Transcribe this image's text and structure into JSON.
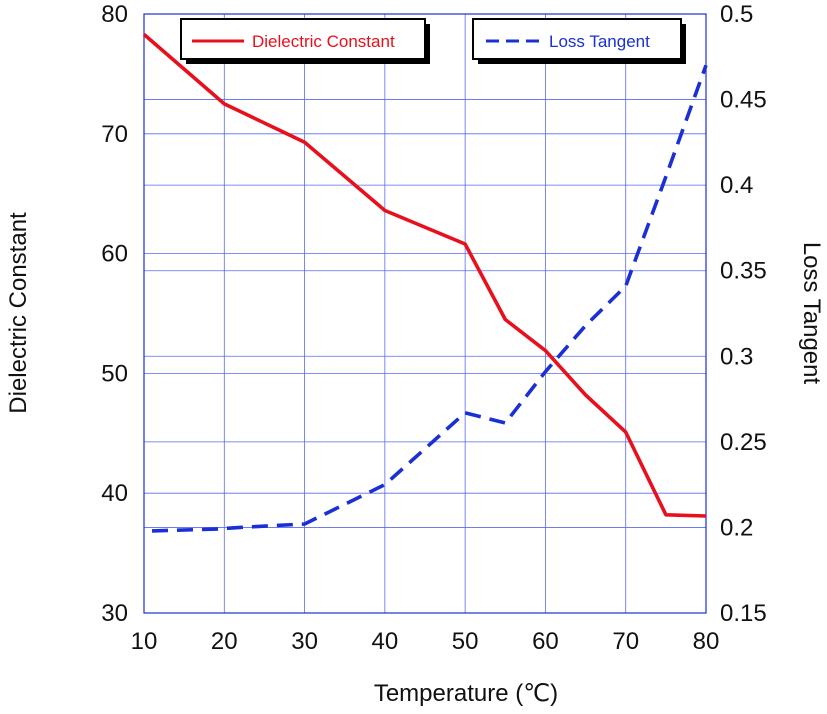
{
  "chart_data": {
    "type": "line",
    "xlabel": "Temperature (℃)",
    "ylabel": "Dielectric Constant",
    "y2label": "Loss Tangent",
    "xlim": [
      10,
      80
    ],
    "ylim": [
      30,
      80
    ],
    "y2lim": [
      0.15,
      0.5
    ],
    "x_ticks": [
      "10",
      "20",
      "30",
      "40",
      "50",
      "60",
      "70",
      "80"
    ],
    "y_ticks": [
      "30",
      "40",
      "50",
      "60",
      "70",
      "80"
    ],
    "y2_ticks": [
      "0.15",
      "0.2",
      "0.25",
      "0.3",
      "0.35",
      "0.4",
      "0.45",
      "0.5"
    ],
    "grid": true,
    "legend_placement": "top",
    "series": [
      {
        "name": "Dielectric Constant",
        "axis": "left",
        "style": "solid",
        "color": "#e8101c",
        "x": [
          10,
          20,
          30,
          40,
          50,
          55,
          60,
          65,
          70,
          75,
          80
        ],
        "y": [
          78.3,
          72.5,
          69.3,
          63.6,
          60.8,
          54.5,
          51.9,
          48.2,
          45.1,
          38.2,
          38.1
        ]
      },
      {
        "name": "Loss Tangent",
        "axis": "right",
        "style": "dashed",
        "color": "#1a2fd6",
        "x": [
          11,
          19,
          22,
          30,
          40,
          50,
          55,
          60,
          65,
          70,
          75,
          80
        ],
        "y": [
          0.198,
          0.199,
          0.2,
          0.202,
          0.225,
          0.267,
          0.261,
          0.291,
          0.318,
          0.341,
          0.405,
          0.47
        ]
      }
    ]
  }
}
